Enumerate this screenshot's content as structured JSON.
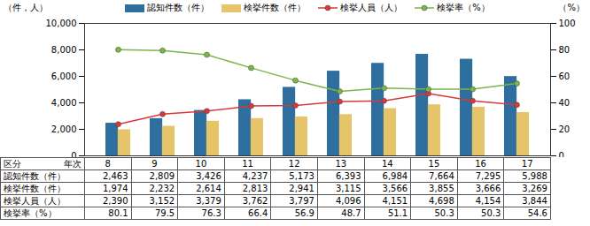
{
  "chart_data": {
    "type": "bar",
    "ylabel": "（件，人）",
    "y2label": "（%）",
    "table_corner": [
      "区分",
      "年次"
    ],
    "categories": [
      "8",
      "9",
      "10",
      "11",
      "12",
      "13",
      "14",
      "15",
      "16",
      "17"
    ],
    "series": [
      {
        "name": "認知件数（件）",
        "type": "bar",
        "color": "#2f6f9f",
        "values": [
          2463,
          2809,
          3426,
          4237,
          5173,
          6393,
          6984,
          7664,
          7295,
          5988
        ],
        "value_labels": [
          "2,463",
          "2,809",
          "3,426",
          "4,237",
          "5,173",
          "6,393",
          "6,984",
          "7,664",
          "7,295",
          "5,988"
        ]
      },
      {
        "name": "検挙件数（件）",
        "type": "bar",
        "color": "#e6c46a",
        "values": [
          1974,
          2232,
          2614,
          2813,
          2941,
          3115,
          3566,
          3855,
          3666,
          3269
        ],
        "value_labels": [
          "1,974",
          "2,232",
          "2,614",
          "2,813",
          "2,941",
          "3,115",
          "3,566",
          "3,855",
          "3,666",
          "3,269"
        ]
      },
      {
        "name": "検挙人員（人）",
        "type": "line",
        "color": "#d9383a",
        "marker": "circle",
        "values": [
          2390,
          3152,
          3379,
          3762,
          3797,
          4096,
          4151,
          4698,
          4154,
          3844
        ],
        "value_labels": [
          "2,390",
          "3,152",
          "3,379",
          "3,762",
          "3,797",
          "4,096",
          "4,151",
          "4,698",
          "4,154",
          "3,844"
        ]
      },
      {
        "name": "検挙率（%）",
        "type": "line",
        "axis": "y2",
        "color": "#7ab648",
        "marker": "circle",
        "values": [
          80.1,
          79.5,
          76.3,
          66.4,
          56.9,
          48.7,
          51.1,
          50.3,
          50.3,
          54.6
        ],
        "value_labels": [
          "80.1",
          "79.5",
          "76.3",
          "66.4",
          "56.9",
          "48.7",
          "51.1",
          "50.3",
          "50.3",
          "54.6"
        ]
      }
    ],
    "ylim": [
      0,
      10000
    ],
    "yticks": [
      0,
      {
        "value": 2000,
        "label": "2,000"
      },
      {
        "value": 4000,
        "label": "4,000"
      },
      {
        "value": 6000,
        "label": "6,000"
      },
      {
        "value": 8000,
        "label": "8,000"
      },
      {
        "value": 10000,
        "label": "10,000"
      }
    ],
    "y2lim": [
      0,
      100
    ],
    "y2ticks": [
      0,
      20,
      40,
      60,
      80,
      100
    ],
    "grid": false
  }
}
